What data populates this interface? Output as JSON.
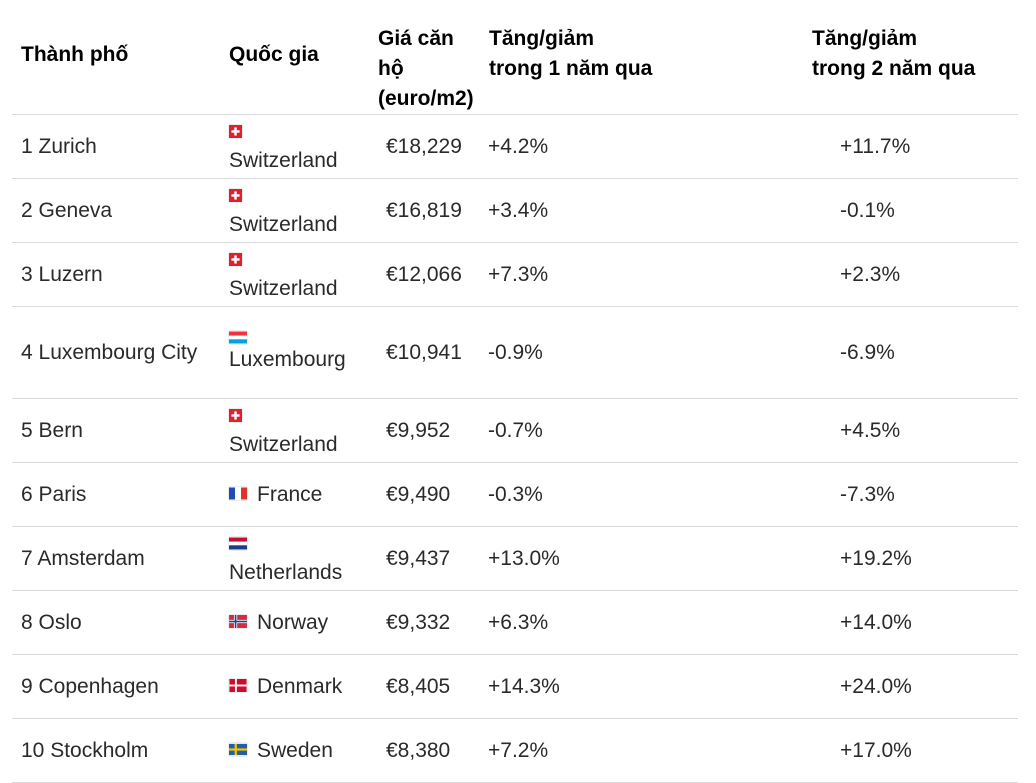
{
  "table": {
    "headers": {
      "city": "Thành phố",
      "country": "Quốc gia",
      "price_line1": "Giá căn hộ",
      "price_line2": "(euro/m2)",
      "y1_line1": "Tăng/giảm",
      "y1_line2": "trong 1 năm qua",
      "y2_line1": "Tăng/giảm",
      "y2_line2": "trong 2 năm qua"
    },
    "rows": [
      {
        "city": "1 Zurich",
        "country": "Switzerland",
        "flag": "switzerland-flag",
        "price": "€18,229",
        "y1": "+4.2%",
        "y2": "+11.7%"
      },
      {
        "city": "2 Geneva",
        "country": "Switzerland",
        "flag": "switzerland-flag",
        "price": "€16,819",
        "y1": "+3.4%",
        "y2": "-0.1%"
      },
      {
        "city": "3 Luzern",
        "country": "Switzerland",
        "flag": "switzerland-flag",
        "price": "€12,066",
        "y1": "+7.3%",
        "y2": "+2.3%"
      },
      {
        "city": "4 Luxembourg City",
        "country": "Luxembourg",
        "flag": "luxembourg-flag",
        "price": "€10,941",
        "y1": "-0.9%",
        "y2": "-6.9%"
      },
      {
        "city": "5 Bern",
        "country": "Switzerland",
        "flag": "switzerland-flag",
        "price": "€9,952",
        "y1": "-0.7%",
        "y2": "+4.5%"
      },
      {
        "city": "6 Paris",
        "country": "France",
        "flag": "france-flag",
        "price": "€9,490",
        "y1": "-0.3%",
        "y2": "-7.3%"
      },
      {
        "city": "7 Amsterdam",
        "country": "Netherlands",
        "flag": "netherlands-flag",
        "price": "€9,437",
        "y1": "+13.0%",
        "y2": "+19.2%"
      },
      {
        "city": "8 Oslo",
        "country": "Norway",
        "flag": "norway-flag",
        "price": "€9,332",
        "y1": "+6.3%",
        "y2": "+14.0%"
      },
      {
        "city": "9 Copenhagen",
        "country": "Denmark",
        "flag": "denmark-flag",
        "price": "€8,405",
        "y1": "+14.3%",
        "y2": "+24.0%"
      },
      {
        "city": "10 Stockholm",
        "country": "Sweden",
        "flag": "sweden-flag",
        "price": "€8,380",
        "y1": "+7.2%",
        "y2": "+17.0%"
      }
    ]
  }
}
